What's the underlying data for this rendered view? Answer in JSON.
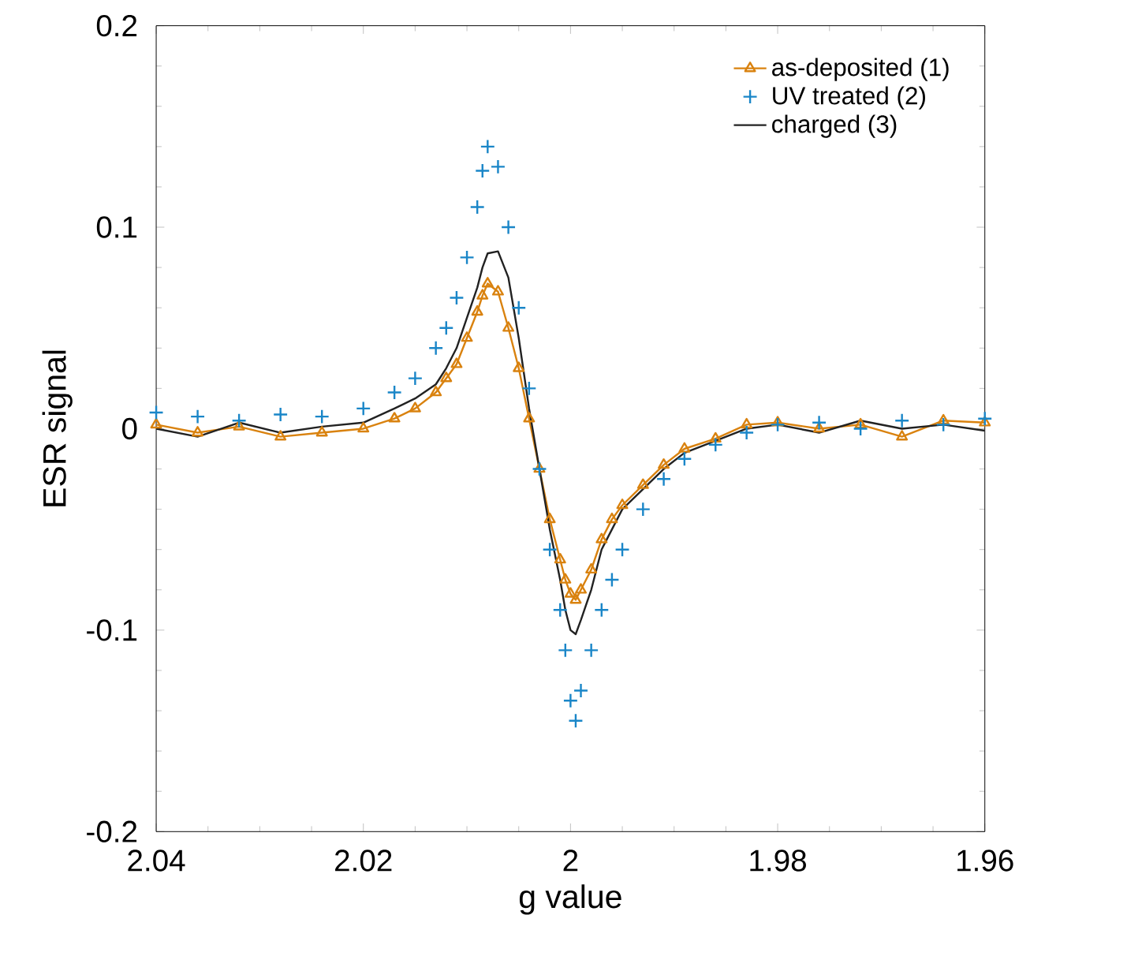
{
  "chart_data": {
    "type": "line",
    "xlabel": "g value",
    "ylabel": "ESR signal",
    "x": [
      2.04,
      2.036,
      2.032,
      2.028,
      2.024,
      2.02,
      2.017,
      2.015,
      2.013,
      2.012,
      2.011,
      2.01,
      2.009,
      2.0085,
      2.008,
      2.007,
      2.006,
      2.005,
      2.004,
      2.003,
      2.002,
      2.001,
      2.0005,
      2.0,
      1.9995,
      1.999,
      1.998,
      1.997,
      1.996,
      1.995,
      1.993,
      1.991,
      1.989,
      1.986,
      1.983,
      1.98,
      1.976,
      1.972,
      1.968,
      1.964,
      1.96
    ],
    "series": [
      {
        "name": "as-deposited (1)",
        "marker": "triangle",
        "color": "#d9820f",
        "values": [
          0.002,
          -0.002,
          0.001,
          -0.004,
          -0.002,
          0.0,
          0.005,
          0.01,
          0.018,
          0.025,
          0.032,
          0.045,
          0.058,
          0.066,
          0.072,
          0.068,
          0.05,
          0.03,
          0.005,
          -0.02,
          -0.045,
          -0.065,
          -0.075,
          -0.082,
          -0.085,
          -0.08,
          -0.07,
          -0.055,
          -0.045,
          -0.038,
          -0.028,
          -0.018,
          -0.01,
          -0.005,
          0.002,
          0.003,
          0.0,
          0.002,
          -0.004,
          0.004,
          0.003
        ]
      },
      {
        "name": "UV treated (2)",
        "type": "scatter",
        "marker": "cross",
        "color": "#1a86c8",
        "values": [
          0.008,
          0.006,
          0.004,
          0.007,
          0.006,
          0.01,
          0.018,
          0.025,
          0.04,
          0.05,
          0.065,
          0.085,
          0.11,
          0.128,
          0.14,
          0.13,
          0.1,
          0.06,
          0.02,
          -0.02,
          -0.06,
          -0.09,
          -0.11,
          -0.135,
          -0.145,
          -0.13,
          -0.11,
          -0.09,
          -0.075,
          -0.06,
          -0.04,
          -0.025,
          -0.015,
          -0.008,
          -0.002,
          0.002,
          0.003,
          0.0,
          0.004,
          0.002,
          0.005
        ]
      },
      {
        "name": "charged (3)",
        "type": "line",
        "color": "#222222",
        "values": [
          0.0,
          -0.004,
          0.003,
          -0.002,
          0.001,
          0.003,
          0.01,
          0.015,
          0.022,
          0.03,
          0.04,
          0.055,
          0.07,
          0.08,
          0.087,
          0.088,
          0.075,
          0.045,
          0.01,
          -0.02,
          -0.05,
          -0.075,
          -0.09,
          -0.1,
          -0.102,
          -0.095,
          -0.08,
          -0.06,
          -0.05,
          -0.04,
          -0.03,
          -0.02,
          -0.012,
          -0.006,
          0.0,
          0.002,
          -0.002,
          0.004,
          0.0,
          0.002,
          -0.001
        ]
      }
    ],
    "xlim": [
      2.04,
      1.96
    ],
    "xticks": [
      2.04,
      2.02,
      2,
      1.98,
      1.96
    ],
    "ylim": [
      -0.2,
      0.2
    ],
    "yticks": [
      -0.2,
      -0.1,
      0,
      0.1,
      0.2
    ],
    "legend": "top right"
  }
}
